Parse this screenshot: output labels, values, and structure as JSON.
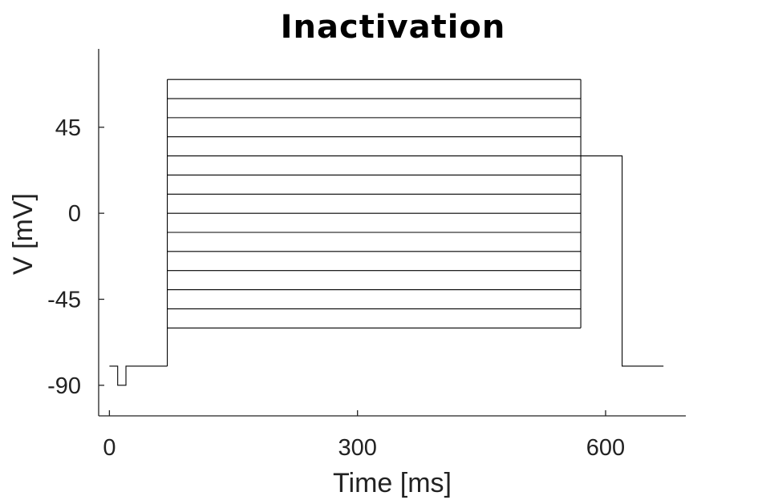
{
  "chart_data": {
    "type": "line",
    "title": "Inactivation",
    "xlabel": "Time [ms]",
    "ylabel": "V [mV]",
    "xlim": [
      -13,
      697
    ],
    "ylim": [
      -106,
      86
    ],
    "xticks": [
      0,
      300,
      600
    ],
    "xtick_labels": [
      "0",
      "300",
      "600"
    ],
    "yticks": [
      -90,
      -45,
      0,
      45
    ],
    "ytick_labels": [
      "-90",
      "-45",
      "0",
      "45"
    ],
    "grid": false,
    "legend": "none",
    "line_color": "#000000",
    "protocol": {
      "holding_mV": -80,
      "prepulse_start_ms": 10,
      "prepulse_end_ms": 20,
      "prepulse_mV": -90,
      "conditioning_start_ms": 70,
      "conditioning_end_ms": 570,
      "conditioning_levels_mV": [
        -60,
        -50,
        -40,
        -30,
        -20,
        -10,
        0,
        10,
        20,
        30,
        40,
        50,
        60,
        70
      ],
      "test_end_ms": 620,
      "test_mV": 30,
      "end_ms": 670
    }
  }
}
